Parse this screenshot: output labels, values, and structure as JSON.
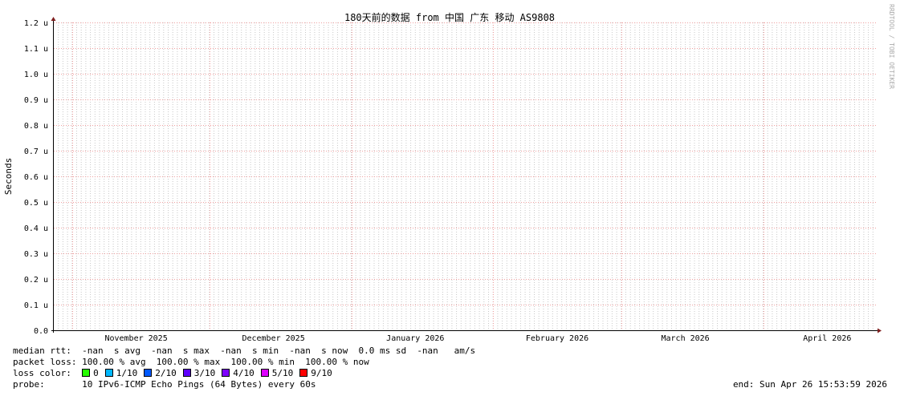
{
  "chart_data": {
    "type": "line",
    "title": "180天前的数据 from 中国 广东 移动 AS9808",
    "ylabel": "Seconds",
    "ylim": [
      0,
      1.2
    ],
    "yunit": "u",
    "yticks": [
      "0.0",
      "0.1 u",
      "0.2 u",
      "0.3 u",
      "0.4 u",
      "0.5 u",
      "0.6 u",
      "0.7 u",
      "0.8 u",
      "0.9 u",
      "1.0 u",
      "1.1 u",
      "1.2 u"
    ],
    "xrange": [
      "2025-10-28",
      "2026-04-26"
    ],
    "xticks": [
      {
        "label": "November 2025",
        "date": "2025-11-15"
      },
      {
        "label": "December 2025",
        "date": "2025-12-15"
      },
      {
        "label": "January 2026",
        "date": "2026-01-15"
      },
      {
        "label": "February 2026",
        "date": "2026-02-15"
      },
      {
        "label": "March 2026",
        "date": "2026-03-15"
      },
      {
        "label": "April 2026",
        "date": "2026-04-15"
      }
    ],
    "major_grid_dates": [
      "2025-11-01",
      "2025-12-01",
      "2026-01-01",
      "2026-02-01",
      "2026-03-01",
      "2026-04-01"
    ],
    "grid": true,
    "series": [],
    "watermark": "RRDTOOL / TOBI OETIKER",
    "colors": {
      "axis": "#000000",
      "arrow": "#7f1f1f",
      "minor_grid": "#c8c8c8",
      "major_grid": "#f0a0a0"
    }
  },
  "legend": {
    "median_rtt": "median rtt:  -nan  s avg  -nan  s max  -nan  s min  -nan  s now  0.0 ms sd  -nan   am/s",
    "packet_loss": "packet loss: 100.00 % avg  100.00 % max  100.00 % min  100.00 % now",
    "loss_color_label": "loss color:  ",
    "loss_colors": [
      {
        "label": "0",
        "color": "#26ff00"
      },
      {
        "label": "1/10",
        "color": "#00b8ff"
      },
      {
        "label": "2/10",
        "color": "#0059ff"
      },
      {
        "label": "3/10",
        "color": "#5e00ff"
      },
      {
        "label": "4/10",
        "color": "#7e00ff"
      },
      {
        "label": "5/10",
        "color": "#dd00ff"
      },
      {
        "label": "9/10",
        "color": "#ff0000"
      }
    ],
    "probe": "probe:       10 IPv6-ICMP Echo Pings (64 Bytes) every 60s",
    "end": "end: Sun Apr 26 15:53:59 2026"
  }
}
